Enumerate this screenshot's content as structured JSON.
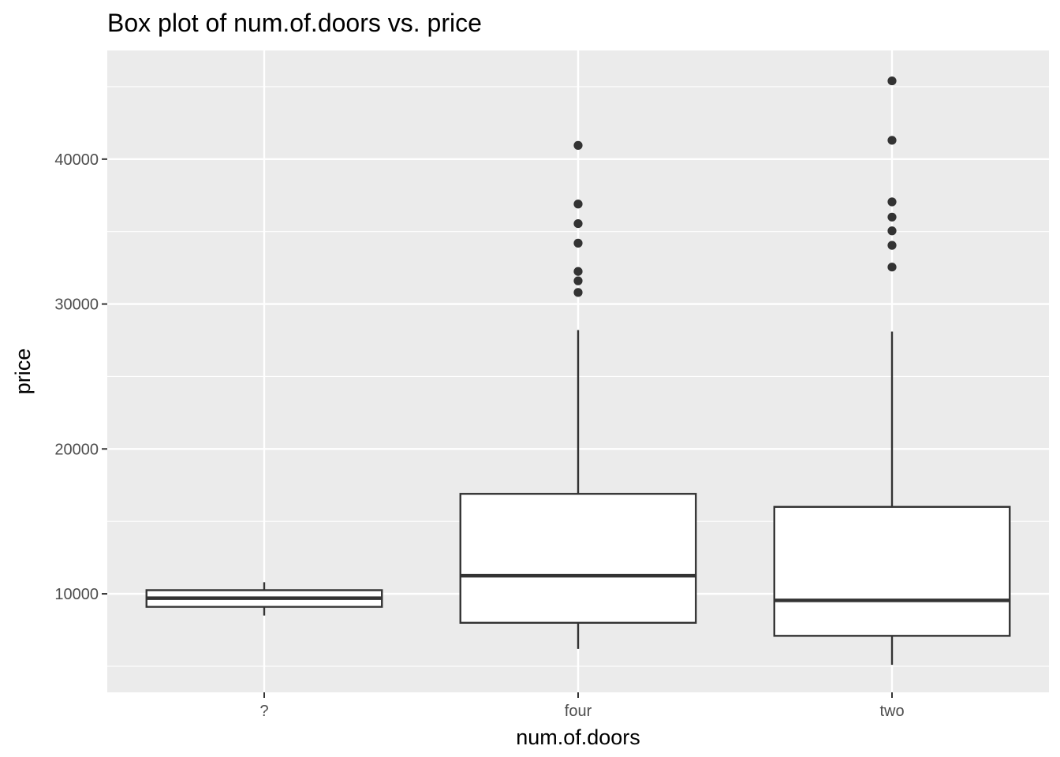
{
  "chart_data": {
    "type": "boxplot",
    "title": "Box plot of num.of.doors vs. price",
    "xlabel": "num.of.doors",
    "ylabel": "price",
    "categories": [
      "?",
      "four",
      "two"
    ],
    "ylim": [
      3200,
      47500
    ],
    "y_ticks": [
      "10000",
      "20000",
      "30000",
      "40000"
    ],
    "grid": true,
    "boxes": [
      {
        "category": "?",
        "whisker_low": 8500,
        "q1": 9100,
        "median": 9700,
        "q3": 10250,
        "whisker_high": 10800,
        "outliers": []
      },
      {
        "category": "four",
        "whisker_low": 6200,
        "q1": 8000,
        "median": 11250,
        "q3": 16900,
        "whisker_high": 28200,
        "outliers": [
          30800,
          31600,
          32250,
          34200,
          35550,
          36900,
          40950
        ]
      },
      {
        "category": "two",
        "whisker_low": 5100,
        "q1": 7100,
        "median": 9550,
        "q3": 16000,
        "whisker_high": 28100,
        "outliers": [
          32550,
          34050,
          35050,
          36000,
          37050,
          41300,
          45400
        ]
      }
    ],
    "colors": {
      "panel": "#ebebeb",
      "grid": "#ffffff",
      "box_fill": "#ffffff",
      "line": "#333333",
      "tick_text": "#4d4d4d"
    }
  }
}
